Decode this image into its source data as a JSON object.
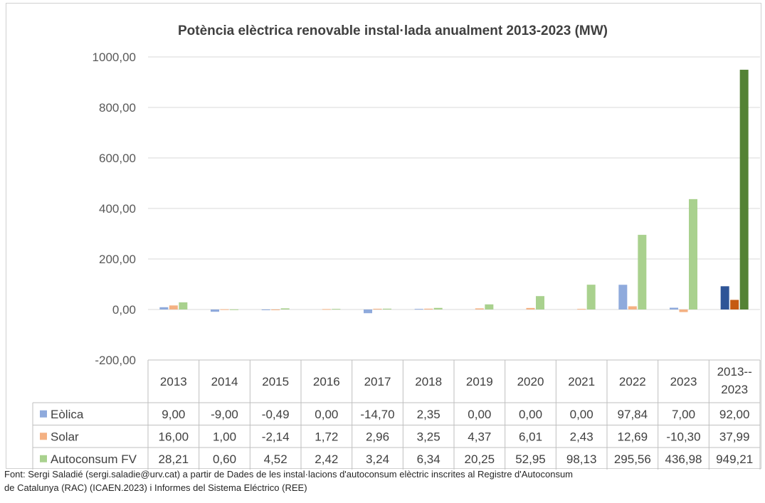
{
  "chart_data": {
    "type": "bar",
    "title": "Potència elèctrica renovable instal·lada anualment 2013-2023 (MW)",
    "categories": [
      "2013",
      "2014",
      "2015",
      "2016",
      "2017",
      "2018",
      "2019",
      "2020",
      "2021",
      "2022",
      "2023",
      "2013-2023"
    ],
    "series": [
      {
        "name": "Eòlica",
        "color": "#8faadc",
        "values": [
          9.0,
          -9.0,
          -0.49,
          0.0,
          -14.7,
          2.35,
          0.0,
          0.0,
          0.0,
          97.84,
          7.0,
          92.0
        ],
        "labels": [
          "9,00",
          "-9,00",
          "-0,49",
          "0,00",
          "-14,70",
          "2,35",
          "0,00",
          "0,00",
          "0,00",
          "97,84",
          "7,00",
          "92,00"
        ]
      },
      {
        "name": "Solar",
        "color": "#f4b183",
        "values": [
          16.0,
          1.0,
          -2.14,
          1.72,
          2.96,
          3.25,
          4.37,
          6.01,
          2.43,
          12.69,
          -10.3,
          37.99
        ],
        "labels": [
          "16,00",
          "1,00",
          "-2,14",
          "1,72",
          "2,96",
          "3,25",
          "4,37",
          "6,01",
          "2,43",
          "12,69",
          "-10,30",
          "37,99"
        ]
      },
      {
        "name": "Autoconsum FV",
        "color": "#a9d18e",
        "values": [
          28.21,
          0.6,
          4.52,
          2.42,
          3.24,
          6.34,
          20.25,
          52.95,
          98.13,
          295.56,
          436.98,
          949.21
        ],
        "labels": [
          "28,21",
          "0,60",
          "4,52",
          "2,42",
          "3,24",
          "6,34",
          "20,25",
          "52,95",
          "98,13",
          "295,56",
          "436,98",
          "949,21"
        ]
      }
    ],
    "highlight_colors": [
      "#2f5597",
      "#c55a11",
      "#548235"
    ],
    "ylim": [
      -200,
      1000
    ],
    "yticks": [
      "1000,00",
      "800,00",
      "600,00",
      "400,00",
      "200,00",
      "0,00",
      "-200,00"
    ],
    "ytick_values": [
      1000,
      800,
      600,
      400,
      200,
      0,
      -200
    ],
    "grid": true,
    "legend": "data-table"
  },
  "source": {
    "line1": "Font: Sergi Saladié (sergi.saladie@urv.cat) a partir de Dades de les instal·lacions d'autoconsum elèctric inscrites al Registre d'Autoconsum",
    "line2": "de Catalunya (RAC) (ICAEN.2023) i Informes del Sistema Eléctrico (REE)"
  }
}
